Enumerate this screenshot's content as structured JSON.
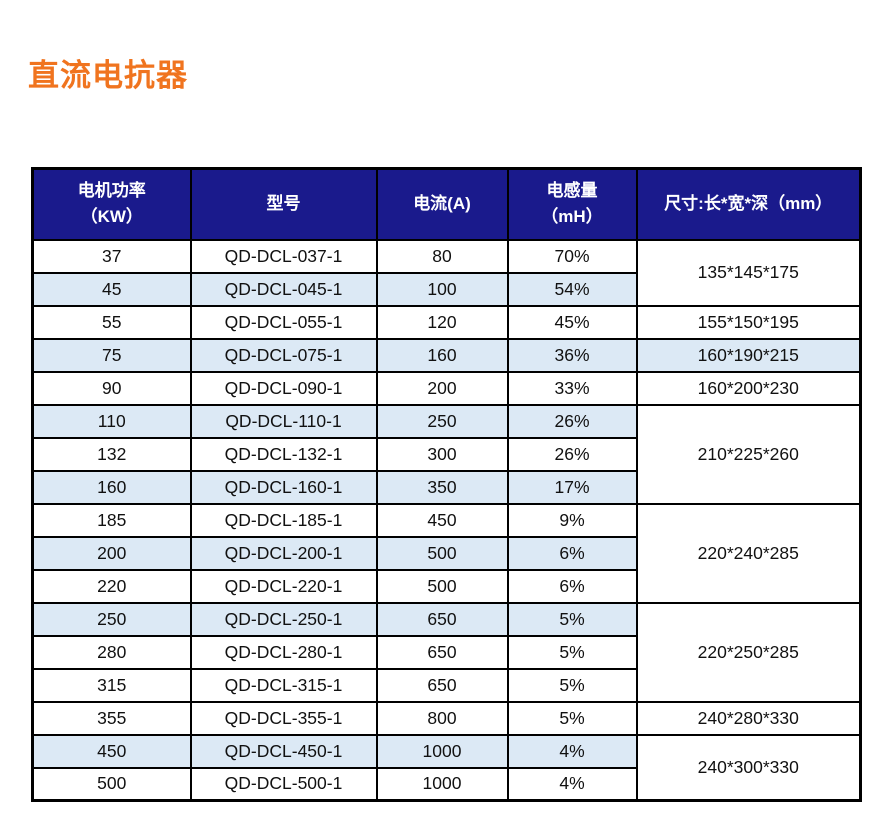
{
  "page": {
    "title": "直流电抗器"
  },
  "colors": {
    "title_orange": "#f0741f",
    "header_navy": "#1a1a8c",
    "row_shade_blue": "#dce9f5",
    "border_black": "#000000"
  },
  "table": {
    "header": {
      "columns": [
        {
          "line1": "电机功率",
          "line2": "（KW）"
        },
        {
          "line1": "型号"
        },
        {
          "line1": "电流(A)"
        },
        {
          "line1": "电感量",
          "line2": "（mH）"
        },
        {
          "line1": "尺寸:长*宽*深（mm）"
        }
      ]
    },
    "rows": [
      {
        "power": "37",
        "model": "QD-DCL-037-1",
        "current": "80",
        "inductance": "70%",
        "shaded": false
      },
      {
        "power": "45",
        "model": "QD-DCL-045-1",
        "current": "100",
        "inductance": "54%",
        "shaded": true
      },
      {
        "power": "55",
        "model": "QD-DCL-055-1",
        "current": "120",
        "inductance": "45%",
        "shaded": false
      },
      {
        "power": "75",
        "model": "QD-DCL-075-1",
        "current": "160",
        "inductance": "36%",
        "shaded": true
      },
      {
        "power": "90",
        "model": "QD-DCL-090-1",
        "current": "200",
        "inductance": "33%",
        "shaded": false
      },
      {
        "power": "110",
        "model": "QD-DCL-110-1",
        "current": "250",
        "inductance": "26%",
        "shaded": true
      },
      {
        "power": "132",
        "model": "QD-DCL-132-1",
        "current": "300",
        "inductance": "26%",
        "shaded": false
      },
      {
        "power": "160",
        "model": "QD-DCL-160-1",
        "current": "350",
        "inductance": "17%",
        "shaded": true
      },
      {
        "power": "185",
        "model": "QD-DCL-185-1",
        "current": "450",
        "inductance": "9%",
        "shaded": false
      },
      {
        "power": "200",
        "model": "QD-DCL-200-1",
        "current": "500",
        "inductance": "6%",
        "shaded": true
      },
      {
        "power": "220",
        "model": "QD-DCL-220-1",
        "current": "500",
        "inductance": "6%",
        "shaded": false
      },
      {
        "power": "250",
        "model": "QD-DCL-250-1",
        "current": "650",
        "inductance": "5%",
        "shaded": true
      },
      {
        "power": "280",
        "model": "QD-DCL-280-1",
        "current": "650",
        "inductance": "5%",
        "shaded": false
      },
      {
        "power": "315",
        "model": "QD-DCL-315-1",
        "current": "650",
        "inductance": "5%",
        "shaded": false
      },
      {
        "power": "355",
        "model": "QD-DCL-355-1",
        "current": "800",
        "inductance": "5%",
        "shaded": false
      },
      {
        "power": "450",
        "model": "QD-DCL-450-1",
        "current": "1000",
        "inductance": "4%",
        "shaded": true
      },
      {
        "power": "500",
        "model": "QD-DCL-500-1",
        "current": "1000",
        "inductance": "4%",
        "shaded": false
      }
    ],
    "dimension_cells": [
      {
        "value": "135*145*175",
        "rowspan": 2,
        "shaded": false
      },
      {
        "value": "155*150*195",
        "rowspan": 1,
        "shaded": false
      },
      {
        "value": "160*190*215",
        "rowspan": 1,
        "shaded": true
      },
      {
        "value": "160*200*230",
        "rowspan": 1,
        "shaded": false
      },
      {
        "value": "210*225*260",
        "rowspan": 3,
        "shaded": false
      },
      {
        "value": "220*240*285",
        "rowspan": 3,
        "shaded": false
      },
      {
        "value": "220*250*285",
        "rowspan": 3,
        "shaded": false
      },
      {
        "value": "240*280*330",
        "rowspan": 1,
        "shaded": false
      },
      {
        "value": "240*300*330",
        "rowspan": 2,
        "shaded": false
      }
    ]
  }
}
